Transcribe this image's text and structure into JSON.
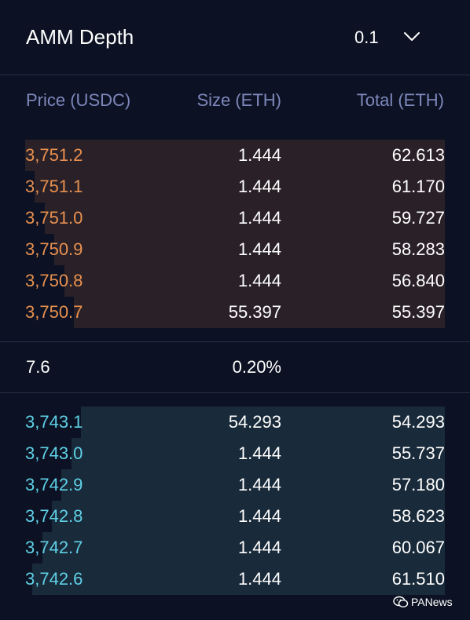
{
  "header": {
    "title": "AMM Depth",
    "precision": "0.1",
    "chevron_icon": "chevron-down-icon"
  },
  "columns": {
    "price": "Price (USDC)",
    "size": "Size (ETH)",
    "total": "Total (ETH)"
  },
  "asks": [
    {
      "price": "3,751.2",
      "size": "1.444",
      "total": "62.613"
    },
    {
      "price": "3,751.1",
      "size": "1.444",
      "total": "61.170"
    },
    {
      "price": "3,751.0",
      "size": "1.444",
      "total": "59.727"
    },
    {
      "price": "3,750.9",
      "size": "1.444",
      "total": "58.283"
    },
    {
      "price": "3,750.8",
      "size": "1.444",
      "total": "56.840"
    },
    {
      "price": "3,750.7",
      "size": "55.397",
      "total": "55.397"
    }
  ],
  "spread": {
    "value": "7.6",
    "percent": "0.20%"
  },
  "bids": [
    {
      "price": "3,743.1",
      "size": "54.293",
      "total": "54.293"
    },
    {
      "price": "3,743.0",
      "size": "1.444",
      "total": "55.737"
    },
    {
      "price": "3,742.9",
      "size": "1.444",
      "total": "57.180"
    },
    {
      "price": "3,742.8",
      "size": "1.444",
      "total": "58.623"
    },
    {
      "price": "3,742.7",
      "size": "1.444",
      "total": "60.067"
    },
    {
      "price": "3,742.6",
      "size": "1.444",
      "total": "61.510"
    }
  ],
  "watermark": {
    "text": "PANews",
    "icon": "wechat-icon"
  },
  "colors": {
    "background": "#0c1223",
    "ask_price": "#e8904f",
    "bid_price": "#5fd0e6",
    "ask_bar": "#2a2128",
    "bid_bar": "#192a3a",
    "column_header": "#7d87bb"
  }
}
